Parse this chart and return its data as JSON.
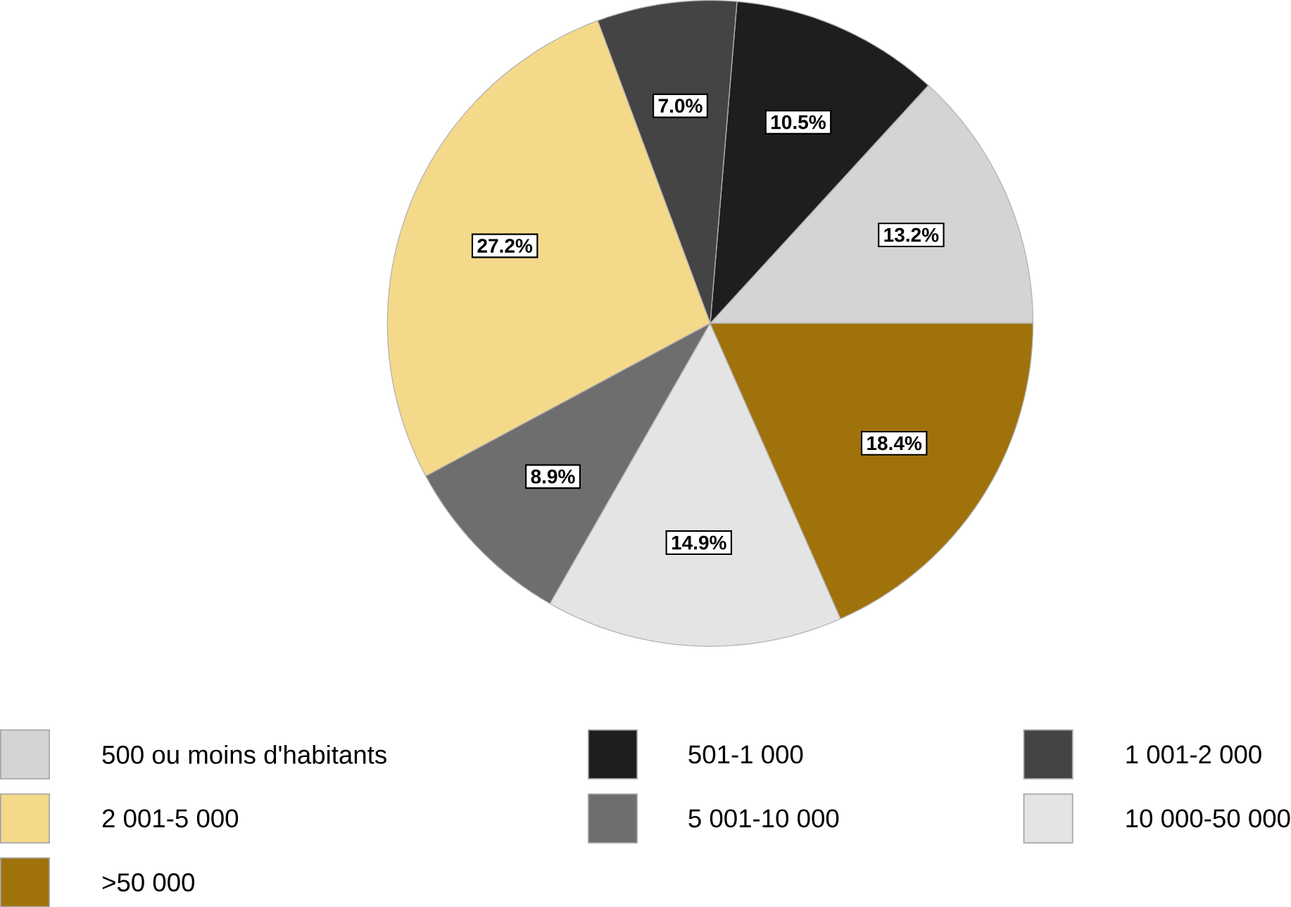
{
  "chart_data": {
    "type": "pie",
    "categories": [
      "500 ou moins d'habitants",
      "501-1 000",
      "1 001-2 000",
      "2 001-5 000",
      "5 001-10 000",
      "10 000-50 000",
      ">50 000"
    ],
    "values": [
      13.2,
      10.5,
      7.0,
      27.2,
      8.9,
      14.9,
      18.4
    ],
    "colors": [
      "#d4d4d4",
      "#1e1e1e",
      "#444444",
      "#f5d98a",
      "#6e6e6e",
      "#e4e4e4",
      "#a0720c"
    ],
    "value_labels": [
      "13.2%",
      "10.5%",
      "7.0%",
      "27.2%",
      "8.9%",
      "14.9%",
      "18.4%"
    ],
    "legend": "bottom"
  }
}
